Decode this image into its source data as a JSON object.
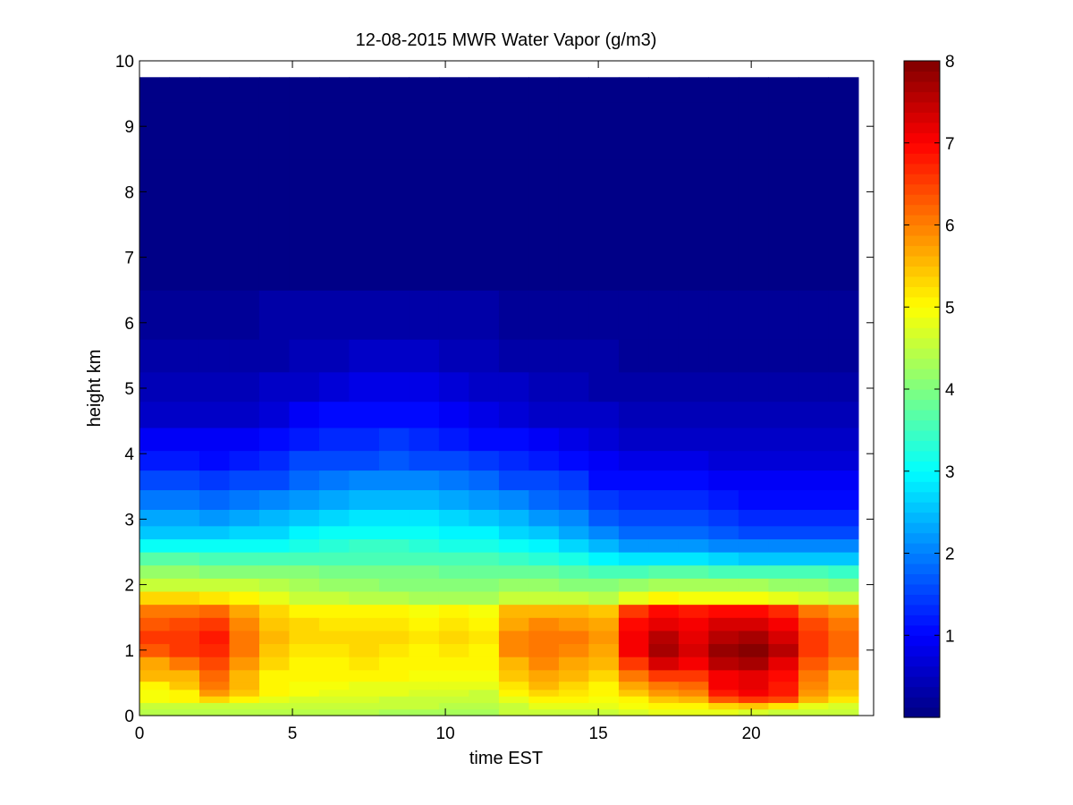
{
  "chart_data": {
    "type": "heatmap",
    "title": "12-08-2015 MWR Water Vapor (g/m3)",
    "xlabel": "time EST",
    "ylabel": "height km",
    "xlim": [
      0,
      24
    ],
    "ylim": [
      0,
      10
    ],
    "x_ticks": [
      "0",
      "5",
      "10",
      "15",
      "20"
    ],
    "y_ticks": [
      "0",
      "1",
      "2",
      "3",
      "4",
      "5",
      "6",
      "7",
      "8",
      "9",
      "10"
    ],
    "colormap": "jet",
    "colorbar": {
      "range": [
        0,
        8
      ],
      "ticks": [
        "1",
        "2",
        "3",
        "4",
        "5",
        "6",
        "7",
        "8"
      ]
    },
    "time_step_hours": 1,
    "time_range": [
      0,
      23.5
    ],
    "height_range_km": [
      0,
      9.75
    ],
    "x": [
      0,
      1,
      2,
      3,
      4,
      5,
      6,
      7,
      8,
      9,
      10,
      11,
      12,
      13,
      14,
      15,
      16,
      17,
      18,
      19,
      20,
      21,
      22,
      23
    ],
    "heights_km": [
      0.05,
      0.15,
      0.25,
      0.35,
      0.45,
      0.6,
      0.8,
      1.0,
      1.2,
      1.4,
      1.6,
      1.8,
      2.0,
      2.2,
      2.4,
      2.6,
      2.8,
      3.0,
      3.3,
      3.6,
      3.9,
      4.2,
      4.6,
      5.0,
      5.5,
      6.0,
      7.0,
      8.0,
      9.0,
      9.75
    ],
    "z": [
      [
        4.4,
        4.5,
        4.9,
        4.9,
        5.1,
        5.5,
        5.7,
        6.3,
        6.5,
        6.3,
        6.1,
        5.3,
        4.6,
        4.2,
        3.7,
        3.1,
        2.6,
        2.3,
        1.9,
        1.5,
        1.2,
        0.9,
        0.6,
        0.45,
        0.3,
        0.2,
        0.1,
        0.1,
        0.1,
        0.1
      ],
      [
        4.4,
        4.5,
        5.0,
        5.1,
        5.4,
        5.6,
        6.1,
        6.5,
        6.6,
        6.4,
        6.1,
        5.3,
        4.6,
        4.2,
        3.7,
        3.1,
        2.6,
        2.3,
        1.9,
        1.5,
        1.2,
        0.9,
        0.6,
        0.45,
        0.3,
        0.2,
        0.1,
        0.1,
        0.1,
        0.1
      ],
      [
        4.4,
        4.6,
        5.3,
        5.8,
        6.0,
        6.2,
        6.4,
        6.7,
        6.8,
        6.6,
        6.2,
        5.2,
        4.6,
        4.1,
        3.6,
        3.1,
        2.6,
        2.2,
        1.8,
        1.4,
        1.1,
        0.9,
        0.6,
        0.45,
        0.3,
        0.2,
        0.1,
        0.1,
        0.1,
        0.1
      ],
      [
        4.4,
        4.6,
        5.1,
        5.4,
        5.5,
        5.6,
        5.8,
        6.0,
        6.0,
        5.9,
        5.7,
        5.0,
        4.5,
        4.1,
        3.6,
        3.1,
        2.7,
        2.3,
        1.9,
        1.5,
        1.2,
        0.9,
        0.6,
        0.45,
        0.3,
        0.2,
        0.1,
        0.1,
        0.1,
        0.1
      ],
      [
        4.4,
        4.6,
        4.8,
        5.0,
        5.0,
        5.1,
        5.3,
        5.4,
        5.5,
        5.4,
        5.3,
        4.8,
        4.4,
        4.0,
        3.6,
        3.1,
        2.7,
        2.4,
        2.0,
        1.6,
        1.3,
        1.0,
        0.7,
        0.5,
        0.35,
        0.25,
        0.1,
        0.1,
        0.1,
        0.1
      ],
      [
        4.4,
        4.6,
        4.7,
        4.9,
        4.9,
        5.0,
        5.1,
        5.2,
        5.3,
        5.3,
        5.1,
        4.6,
        4.3,
        4.0,
        3.6,
        3.2,
        2.9,
        2.6,
        2.2,
        1.8,
        1.5,
        1.2,
        0.9,
        0.6,
        0.4,
        0.25,
        0.1,
        0.1,
        0.1,
        0.1
      ],
      [
        4.4,
        4.6,
        4.7,
        4.8,
        4.9,
        5.0,
        5.1,
        5.2,
        5.3,
        5.2,
        5.1,
        4.5,
        4.2,
        3.9,
        3.6,
        3.3,
        3.0,
        2.7,
        2.3,
        1.9,
        1.6,
        1.3,
        1.0,
        0.7,
        0.45,
        0.3,
        0.1,
        0.1,
        0.1,
        0.1
      ],
      [
        4.4,
        4.5,
        4.7,
        4.8,
        4.8,
        5.0,
        5.2,
        5.3,
        5.3,
        5.2,
        5.0,
        4.4,
        4.2,
        3.9,
        3.6,
        3.4,
        3.1,
        2.8,
        2.4,
        2.0,
        1.6,
        1.3,
        1.0,
        0.75,
        0.5,
        0.3,
        0.1,
        0.1,
        0.1,
        0.1
      ],
      [
        4.3,
        4.5,
        4.6,
        4.8,
        4.8,
        5.0,
        5.1,
        5.2,
        5.3,
        5.2,
        5.0,
        4.4,
        4.1,
        3.9,
        3.6,
        3.4,
        3.1,
        2.8,
        2.4,
        2.0,
        1.7,
        1.4,
        1.1,
        0.8,
        0.5,
        0.3,
        0.1,
        0.1,
        0.1,
        0.1
      ],
      [
        4.3,
        4.5,
        4.6,
        4.7,
        4.8,
        4.9,
        5.0,
        5.1,
        5.2,
        5.1,
        4.9,
        4.3,
        4.1,
        3.9,
        3.6,
        3.3,
        3.0,
        2.8,
        2.4,
        2.0,
        1.6,
        1.3,
        1.0,
        0.75,
        0.5,
        0.3,
        0.1,
        0.1,
        0.1,
        0.1
      ],
      [
        4.3,
        4.4,
        4.6,
        4.7,
        4.8,
        4.9,
        5.1,
        5.2,
        5.3,
        5.2,
        5.0,
        4.3,
        4.1,
        3.8,
        3.5,
        3.2,
        2.9,
        2.7,
        2.3,
        1.9,
        1.5,
        1.2,
        0.9,
        0.7,
        0.45,
        0.3,
        0.1,
        0.1,
        0.1,
        0.1
      ],
      [
        4.3,
        4.4,
        4.5,
        4.6,
        4.8,
        4.9,
        5.0,
        5.1,
        5.2,
        5.1,
        4.9,
        4.3,
        4.0,
        3.8,
        3.5,
        3.2,
        2.9,
        2.6,
        2.2,
        1.8,
        1.4,
        1.1,
        0.8,
        0.6,
        0.4,
        0.25,
        0.1,
        0.1,
        0.1,
        0.1
      ],
      [
        4.5,
        4.6,
        4.8,
        5.0,
        5.2,
        5.4,
        5.6,
        5.9,
        5.9,
        5.7,
        5.5,
        4.6,
        4.2,
        3.8,
        3.4,
        3.0,
        2.7,
        2.4,
        2.0,
        1.6,
        1.3,
        1.0,
        0.7,
        0.5,
        0.35,
        0.2,
        0.1,
        0.1,
        0.1,
        0.1
      ],
      [
        4.6,
        4.8,
        5.1,
        5.3,
        5.5,
        5.7,
        5.9,
        6.1,
        6.1,
        5.9,
        5.5,
        4.6,
        4.2,
        3.8,
        3.3,
        2.9,
        2.5,
        2.2,
        1.8,
        1.5,
        1.2,
        0.9,
        0.6,
        0.45,
        0.3,
        0.2,
        0.1,
        0.1,
        0.1,
        0.1
      ],
      [
        4.6,
        4.8,
        5.0,
        5.2,
        5.3,
        5.5,
        5.7,
        5.9,
        6.0,
        5.8,
        5.5,
        4.5,
        4.1,
        3.7,
        3.2,
        2.7,
        2.3,
        2.0,
        1.7,
        1.4,
        1.1,
        0.8,
        0.6,
        0.4,
        0.3,
        0.2,
        0.1,
        0.1,
        0.1,
        0.1
      ],
      [
        4.6,
        4.8,
        4.9,
        5.0,
        5.1,
        5.3,
        5.5,
        5.7,
        5.8,
        5.7,
        5.4,
        4.4,
        4.0,
        3.5,
        2.9,
        2.4,
        2.0,
        1.7,
        1.4,
        1.1,
        0.9,
        0.7,
        0.5,
        0.35,
        0.25,
        0.15,
        0.1,
        0.1,
        0.1,
        0.1
      ],
      [
        4.7,
        4.9,
        5.1,
        5.4,
        5.7,
        6.0,
        6.6,
        7.1,
        7.0,
        6.9,
        6.6,
        4.8,
        4.2,
        3.6,
        2.8,
        2.2,
        1.8,
        1.5,
        1.3,
        1.0,
        0.8,
        0.6,
        0.45,
        0.3,
        0.2,
        0.15,
        0.1,
        0.1,
        0.1,
        0.1
      ],
      [
        4.8,
        5.0,
        5.4,
        5.8,
        6.1,
        6.5,
        7.3,
        7.7,
        7.5,
        7.2,
        6.9,
        5.0,
        4.3,
        3.7,
        2.8,
        2.2,
        1.8,
        1.5,
        1.3,
        1.0,
        0.8,
        0.6,
        0.45,
        0.3,
        0.2,
        0.15,
        0.1,
        0.1,
        0.1,
        0.1
      ],
      [
        4.8,
        5.1,
        5.5,
        5.9,
        6.2,
        6.5,
        7.0,
        7.3,
        7.2,
        7.0,
        6.8,
        4.9,
        4.3,
        3.7,
        2.8,
        2.2,
        1.8,
        1.5,
        1.3,
        1.0,
        0.8,
        0.6,
        0.45,
        0.3,
        0.2,
        0.15,
        0.1,
        0.1,
        0.1,
        0.1
      ],
      [
        4.8,
        5.3,
        6.3,
        6.8,
        7.0,
        7.1,
        7.6,
        7.8,
        7.6,
        7.3,
        6.9,
        4.9,
        4.3,
        3.6,
        2.7,
        2.1,
        1.7,
        1.4,
        1.2,
        0.9,
        0.7,
        0.55,
        0.4,
        0.3,
        0.2,
        0.15,
        0.1,
        0.1,
        0.1,
        0.1
      ],
      [
        4.7,
        5.4,
        6.6,
        7.1,
        7.2,
        7.2,
        7.7,
        7.9,
        7.7,
        7.3,
        6.9,
        4.9,
        4.3,
        3.5,
        2.6,
        2.0,
        1.6,
        1.3,
        1.1,
        0.9,
        0.7,
        0.5,
        0.4,
        0.3,
        0.2,
        0.15,
        0.1,
        0.1,
        0.1,
        0.1
      ],
      [
        4.6,
        5.2,
        6.4,
        6.8,
        6.8,
        6.9,
        7.2,
        7.5,
        7.3,
        7.0,
        6.7,
        4.8,
        4.2,
        3.5,
        2.6,
        2.0,
        1.6,
        1.3,
        1.1,
        0.9,
        0.7,
        0.5,
        0.4,
        0.3,
        0.2,
        0.15,
        0.1,
        0.1,
        0.1,
        0.1
      ],
      [
        4.5,
        4.8,
        5.6,
        5.8,
        5.9,
        6.0,
        6.3,
        6.6,
        6.6,
        6.4,
        6.1,
        4.7,
        4.2,
        3.5,
        2.6,
        2.0,
        1.6,
        1.3,
        1.1,
        0.9,
        0.7,
        0.5,
        0.4,
        0.3,
        0.2,
        0.15,
        0.1,
        0.1,
        0.1,
        0.1
      ],
      [
        4.5,
        4.7,
        5.2,
        5.4,
        5.5,
        5.6,
        5.9,
        6.2,
        6.2,
        6.0,
        5.8,
        4.6,
        4.1,
        3.4,
        2.6,
        2.0,
        1.6,
        1.3,
        1.1,
        0.9,
        0.7,
        0.5,
        0.4,
        0.3,
        0.2,
        0.15,
        0.1,
        0.1,
        0.1,
        0.1
      ]
    ]
  }
}
